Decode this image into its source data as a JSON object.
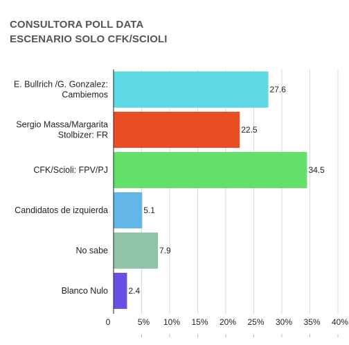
{
  "chart_data": {
    "type": "bar",
    "orientation": "horizontal",
    "title": "CONSULTORA POLL DATA",
    "subtitle": "ESCENARIO SOLO CFK/SCIOLI",
    "categories": [
      [
        "E. Bullrich /G. Gonzalez:",
        "Cambiemos"
      ],
      [
        "Sergio Massa/Margarita",
        "Stolbizer: FR"
      ],
      [
        "CFK/Scioli: FPV/PJ"
      ],
      [
        "Candidatos de izquierda"
      ],
      [
        "No sabe"
      ],
      [
        "Blanco Nulo"
      ]
    ],
    "values": [
      27.6,
      22.5,
      34.5,
      5.1,
      7.9,
      2.4
    ],
    "value_labels": [
      "27.6",
      "22.5",
      "34.5",
      "5.1",
      "7.9",
      "2.4"
    ],
    "colors": [
      "#5fd9e3",
      "#e84d24",
      "#63e06a",
      "#62b6e8",
      "#8fc4a8",
      "#6a4fe3"
    ],
    "xlim": [
      0,
      40
    ],
    "xticks": [
      0,
      5,
      10,
      15,
      20,
      25,
      30,
      35,
      40
    ],
    "xtick_labels": [
      "0",
      "5%",
      "10%",
      "15%",
      "20%",
      "25%",
      "30%",
      "35%",
      "40%"
    ],
    "grid": true,
    "legend": "none"
  }
}
